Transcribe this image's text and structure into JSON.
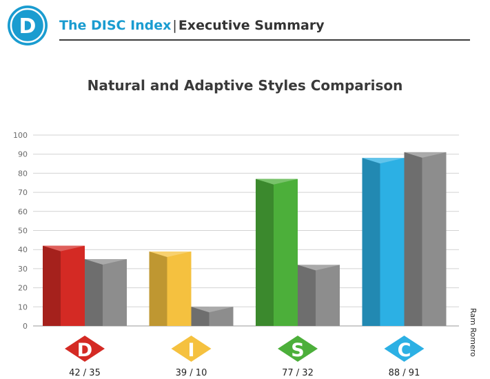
{
  "header": {
    "logo_letter": "D",
    "brand": "The DISC Index",
    "separator": "|",
    "subtitle": "Executive Summary"
  },
  "side_name": "Ram Romero",
  "colors": {
    "brand_blue": "#1a9cd0",
    "D": "#d42a24",
    "I": "#f5c13f",
    "S": "#4caf3a",
    "C": "#2cb0e4",
    "adaptive_gray": "#8d8d8d"
  },
  "chart_data": {
    "type": "bar",
    "title": "Natural and Adaptive Styles Comparison",
    "categories": [
      "D",
      "I",
      "S",
      "C"
    ],
    "category_labels": [
      "42 / 35",
      "39 / 10",
      "77 / 32",
      "88 / 91"
    ],
    "series": [
      {
        "values": [
          42,
          39,
          77,
          88
        ]
      },
      {
        "values": [
          35,
          10,
          32,
          91
        ]
      }
    ],
    "ylim": [
      0,
      100
    ],
    "yticks": [
      0,
      10,
      20,
      30,
      40,
      50,
      60,
      70,
      80,
      90,
      100
    ],
    "grid": true,
    "xlabel": "",
    "ylabel": ""
  }
}
